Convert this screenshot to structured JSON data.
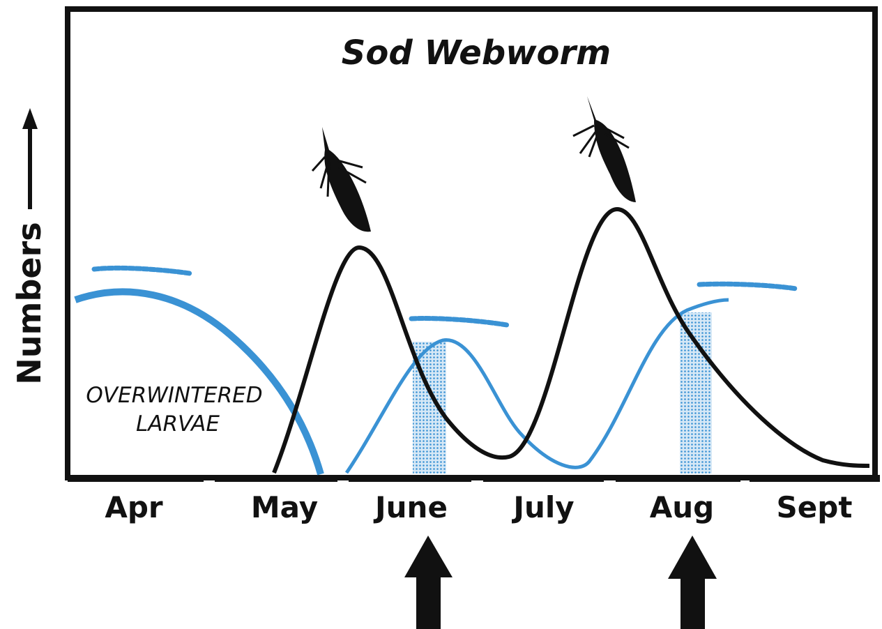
{
  "title": "Sod Webworm",
  "y_axis_label": "Numbers",
  "months": [
    "Apr",
    "May",
    "June",
    "July",
    "Aug",
    "Sept"
  ],
  "annotation": [
    "OVERWINTERED",
    "LARVAE"
  ]
}
